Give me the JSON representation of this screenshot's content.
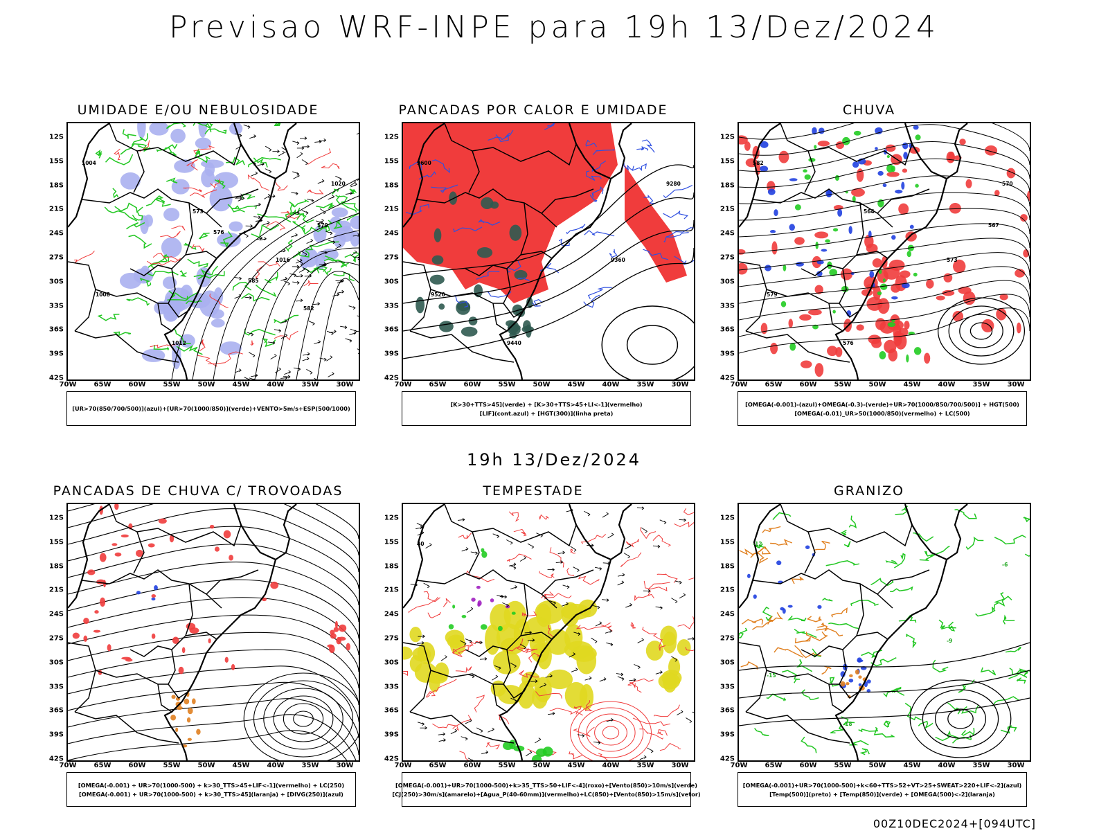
{
  "main_title": "Previsao WRF-INPE  para 19h 13/Dez/2024",
  "mid_label": "19h 13/Dez/2024",
  "footer": "00Z10DEC2024+[094UTC]",
  "lat_ticks": [
    "12S",
    "15S",
    "18S",
    "21S",
    "24S",
    "27S",
    "30S",
    "33S",
    "36S",
    "39S",
    "42S"
  ],
  "lon_ticks": [
    "70W",
    "65W",
    "60W",
    "55W",
    "50W",
    "45W",
    "40W",
    "35W",
    "30W"
  ],
  "panels": [
    {
      "title": "UMIDADE E/OU NEBULOSIDADE",
      "legend": [
        "[UR>70(850/700/500)](azul)+[UR>70(1000/850)](verde)+VENTO>5m/s+ESP(500/1000)"
      ],
      "contour_labels": [
        "1004",
        "1008",
        "1012",
        "1016",
        "1020",
        "570",
        "573",
        "576",
        "582",
        "585"
      ]
    },
    {
      "title": "PANCADAS POR CALOR E UMIDADE",
      "legend": [
        "[K>30+TTS>45](verde) + [K>30+TTS>45+LI<-1](vermelho)",
        "[LIF](cont.azul) + [HGT(300)](linha preta)"
      ],
      "contour_labels": [
        "9600",
        "9520",
        "9440",
        "9360",
        "9280"
      ]
    },
    {
      "title": "CHUVA",
      "legend": [
        "[OMEGA(-0.001)-(azul)+OMEGA(-0.3)-(verde)+UR>70(1000/850/700/500)] + HGT(500)",
        "[OMEGA(-0.01)_UR>50(1000/850)(vermelho) + LC(500)"
      ],
      "contour_labels": [
        "582",
        "579",
        "576",
        "573",
        "570",
        "567",
        "564"
      ]
    },
    {
      "title": "PANCADAS DE CHUVA C/ TROVOADAS",
      "legend": [
        "[OMEGA(-0.001) + UR>70(1000-500) + k>30_TTS>45+LIF<-1](vermelho) + LC(250)",
        "[OMEGA(-0.001) + UR>70(1000-500) + k>30_TTS>45](laranja) + [DIVG(250)](azul)"
      ],
      "contour_labels": []
    },
    {
      "title": "TEMPESTADE",
      "legend": [
        "[OMEGA(-0.001)+UR>70(1000-500)+k>35_TTS>50+LIF<-4](roxo)+[Vento(850)>10m/s](verde)",
        "[CJ(250)>30m/s](amarelo)+[Agua_P(40-60mm)](vermelho)+LC(850)+[Vento(850)>15m/s](vetor)"
      ],
      "contour_labels": [
        "40"
      ]
    },
    {
      "title": "GRANIZO",
      "legend": [
        "[OMEGA(-0.001)+UR>70(1000-500)+k<60+TTS>52+VT>25+SWEAT>220+LIF<-2](azul)",
        "[Temp(500)](preto) + [Temp(850)](verde) + [OMEGA(500)<-2](laranja)"
      ],
      "contour_labels": [
        "-12",
        "-15",
        "-18",
        "-9",
        "-6"
      ]
    }
  ],
  "colors": {
    "coast": "#000000",
    "blue_shade": "#aab0f0",
    "green_line": "#22c722",
    "red_fill": "#f03c3c",
    "dark_green": "#2f5a50",
    "blue_line": "#3050e0",
    "yellow": "#e0d820",
    "orange": "#e08020",
    "purple": "#a020c0"
  }
}
